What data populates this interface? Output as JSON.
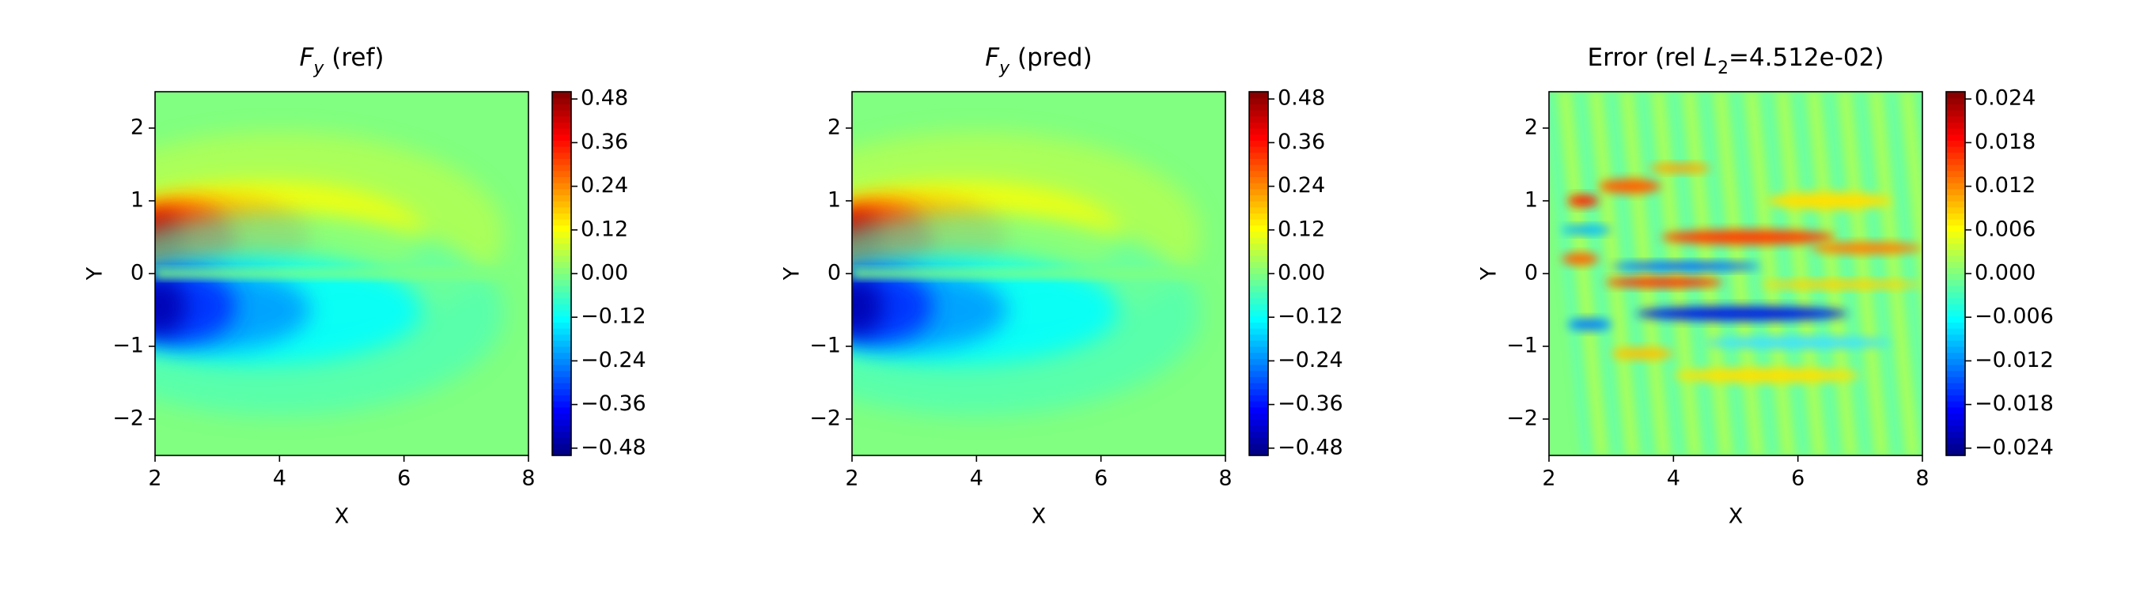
{
  "chart_data": [
    {
      "type": "contour",
      "field": "fy",
      "title": [
        {
          "text": "F",
          "italic": true
        },
        {
          "text": "y",
          "italic": true,
          "sub": true
        },
        {
          "text": " (ref)"
        }
      ],
      "xlabel": "X",
      "ylabel": "Y",
      "xlim": [
        2,
        8
      ],
      "ylim": [
        -2.5,
        2.5
      ],
      "xticks": [
        2,
        4,
        6,
        8
      ],
      "yticks": [
        {
          "value": -2,
          "label": "−2"
        },
        {
          "value": -1,
          "label": "−1"
        },
        0,
        1,
        2
      ],
      "colormap": "jet",
      "clim": [
        -0.5,
        0.5
      ],
      "cticks": [
        {
          "value": -0.48,
          "label": "−0.48"
        },
        {
          "value": -0.36,
          "label": "−0.36"
        },
        {
          "value": -0.24,
          "label": "−0.24"
        },
        {
          "value": -0.12,
          "label": "−0.12"
        },
        {
          "value": 0,
          "label": "0.00"
        },
        0.12,
        0.24,
        0.36,
        0.48
      ]
    },
    {
      "type": "contour",
      "field": "fy",
      "title": [
        {
          "text": "F",
          "italic": true
        },
        {
          "text": "y",
          "italic": true,
          "sub": true
        },
        {
          "text": " (pred)"
        }
      ],
      "xlabel": "X",
      "ylabel": "Y",
      "xlim": [
        2,
        8
      ],
      "ylim": [
        -2.5,
        2.5
      ],
      "xticks": [
        2,
        4,
        6,
        8
      ],
      "yticks": [
        {
          "value": -2,
          "label": "−2"
        },
        {
          "value": -1,
          "label": "−1"
        },
        0,
        1,
        2
      ],
      "colormap": "jet",
      "clim": [
        -0.5,
        0.5
      ],
      "cticks": [
        {
          "value": -0.48,
          "label": "−0.48"
        },
        {
          "value": -0.36,
          "label": "−0.36"
        },
        {
          "value": -0.24,
          "label": "−0.24"
        },
        {
          "value": -0.12,
          "label": "−0.12"
        },
        {
          "value": 0,
          "label": "0.00"
        },
        0.12,
        0.24,
        0.36,
        0.48
      ]
    },
    {
      "type": "contour",
      "field": "error",
      "title": [
        {
          "text": "Error (rel "
        },
        {
          "text": "L",
          "italic": true
        },
        {
          "text": "2",
          "sub": true
        },
        {
          "text": "=4.512e-02)"
        }
      ],
      "xlabel": "X",
      "ylabel": "Y",
      "xlim": [
        2,
        8
      ],
      "ylim": [
        -2.5,
        2.5
      ],
      "xticks": [
        2,
        4,
        6,
        8
      ],
      "yticks": [
        {
          "value": -2,
          "label": "−2"
        },
        {
          "value": -1,
          "label": "−1"
        },
        0,
        1,
        2
      ],
      "colormap": "jet",
      "clim": [
        -0.025,
        0.025
      ],
      "cticks": [
        {
          "value": -0.024,
          "label": "−0.024"
        },
        {
          "value": -0.018,
          "label": "−0.018"
        },
        {
          "value": -0.012,
          "label": "−0.012"
        },
        {
          "value": -0.006,
          "label": "−0.006"
        },
        {
          "value": 0,
          "label": "0.000"
        },
        0.006,
        0.012,
        0.018,
        0.024
      ]
    }
  ]
}
